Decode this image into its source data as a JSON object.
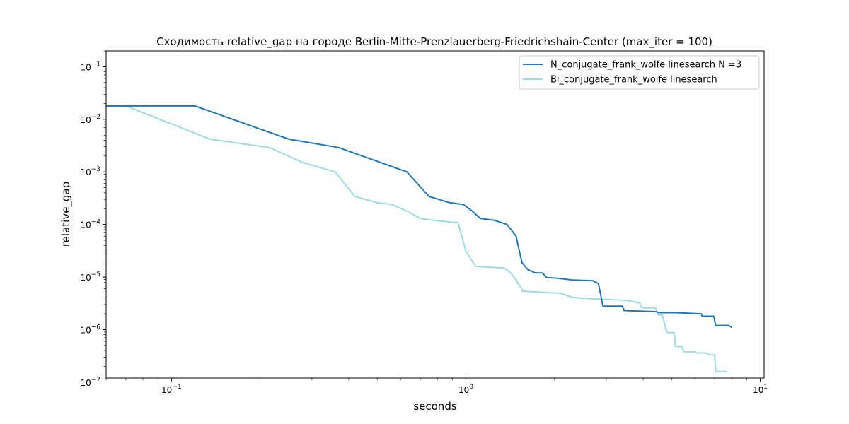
{
  "chart_data": {
    "type": "line",
    "title": "Сходимость relative_gap на городе Berlin-Mitte-Prenzlauerberg-Friedrichshain-Center  (max_iter = 100)",
    "xlabel": "seconds",
    "ylabel": "relative_gap",
    "xscale": "log",
    "yscale": "log",
    "xlim": [
      0.06,
      10.3
    ],
    "ylim": [
      1.2e-07,
      0.2
    ],
    "grid": false,
    "legend_position": "top-right",
    "x_ticks": [
      {
        "base": "10",
        "exp": "−1",
        "value": 0.1
      },
      {
        "base": "10",
        "exp": "0",
        "value": 1
      },
      {
        "base": "10",
        "exp": "1",
        "value": 10
      }
    ],
    "y_ticks": [
      {
        "base": "10",
        "exp": "−1",
        "value": 0.1
      },
      {
        "base": "10",
        "exp": "−2",
        "value": 0.01
      },
      {
        "base": "10",
        "exp": "−3",
        "value": 0.001
      },
      {
        "base": "10",
        "exp": "−4",
        "value": 0.0001
      },
      {
        "base": "10",
        "exp": "−5",
        "value": 1e-05
      },
      {
        "base": "10",
        "exp": "−6",
        "value": 1e-06
      },
      {
        "base": "10",
        "exp": "−7",
        "value": 1e-07
      }
    ],
    "series": [
      {
        "name": "N_conjugate_frank_wolfe linesearch N =3",
        "color": "#1f77b4",
        "points": [
          [
            0.058,
            0.018
          ],
          [
            0.12,
            0.018
          ],
          [
            0.25,
            0.0042
          ],
          [
            0.37,
            0.0029
          ],
          [
            0.63,
            0.001
          ],
          [
            0.75,
            0.00034
          ],
          [
            0.88,
            0.00026
          ],
          [
            0.98,
            0.00024
          ],
          [
            1.05,
            0.00018
          ],
          [
            1.12,
            0.00013
          ],
          [
            1.25,
            0.00012
          ],
          [
            1.38,
            0.0001
          ],
          [
            1.48,
            6e-05
          ],
          [
            1.55,
            1.9e-05
          ],
          [
            1.62,
            1.4e-05
          ],
          [
            1.72,
            1.2e-05
          ],
          [
            1.82,
            1.2e-05
          ],
          [
            1.88,
            9.8e-06
          ],
          [
            2.05,
            9.5e-06
          ],
          [
            2.3,
            8.8e-06
          ],
          [
            2.7,
            8.5e-06
          ],
          [
            2.82,
            7.5e-06
          ],
          [
            2.92,
            2.8e-06
          ],
          [
            3.4,
            2.8e-06
          ],
          [
            3.45,
            2.3e-06
          ],
          [
            4.4,
            2.2e-06
          ],
          [
            4.55,
            2.1e-06
          ],
          [
            5.2,
            2.1e-06
          ],
          [
            6.3,
            2e-06
          ],
          [
            6.35,
            1.8e-06
          ],
          [
            6.95,
            1.8e-06
          ],
          [
            7.05,
            1.2e-06
          ],
          [
            7.8,
            1.2e-06
          ],
          [
            8.0,
            1.1e-06
          ]
        ]
      },
      {
        "name": "Bi_conjugate_frank_wolfe linesearch",
        "color": "#9edae5",
        "points": [
          [
            0.058,
            0.018
          ],
          [
            0.07,
            0.018
          ],
          [
            0.135,
            0.0042
          ],
          [
            0.215,
            0.0029
          ],
          [
            0.28,
            0.0015
          ],
          [
            0.36,
            0.001
          ],
          [
            0.42,
            0.00034
          ],
          [
            0.5,
            0.00026
          ],
          [
            0.56,
            0.00024
          ],
          [
            0.63,
            0.00018
          ],
          [
            0.7,
            0.00013
          ],
          [
            0.78,
            0.00012
          ],
          [
            0.9,
            0.00011
          ],
          [
            0.94,
            0.00011
          ],
          [
            1.0,
            3.1e-05
          ],
          [
            1.08,
            1.6e-05
          ],
          [
            1.35,
            1.48e-05
          ],
          [
            1.42,
            1.2e-05
          ],
          [
            1.48,
            8.8e-06
          ],
          [
            1.56,
            5.4e-06
          ],
          [
            2.1,
            4.9e-06
          ],
          [
            2.3,
            4.1e-06
          ],
          [
            2.6,
            3.9e-06
          ],
          [
            3.5,
            3.6e-06
          ],
          [
            3.9,
            3.2e-06
          ],
          [
            3.95,
            2.6e-06
          ],
          [
            4.4,
            2.6e-06
          ],
          [
            4.5,
            1.9e-06
          ],
          [
            4.65,
            1.9e-06
          ],
          [
            4.78,
            1e-06
          ],
          [
            4.85,
            8.8e-07
          ],
          [
            5.1,
            8.8e-07
          ],
          [
            5.15,
            4.8e-07
          ],
          [
            5.4,
            4.8e-07
          ],
          [
            5.5,
            3.8e-07
          ],
          [
            6.0,
            3.8e-07
          ],
          [
            6.1,
            3.6e-07
          ],
          [
            6.6,
            3.6e-07
          ],
          [
            6.7,
            3.3e-07
          ],
          [
            7.0,
            3.3e-07
          ],
          [
            7.05,
            1.6e-07
          ],
          [
            7.7,
            1.6e-07
          ]
        ]
      }
    ]
  }
}
